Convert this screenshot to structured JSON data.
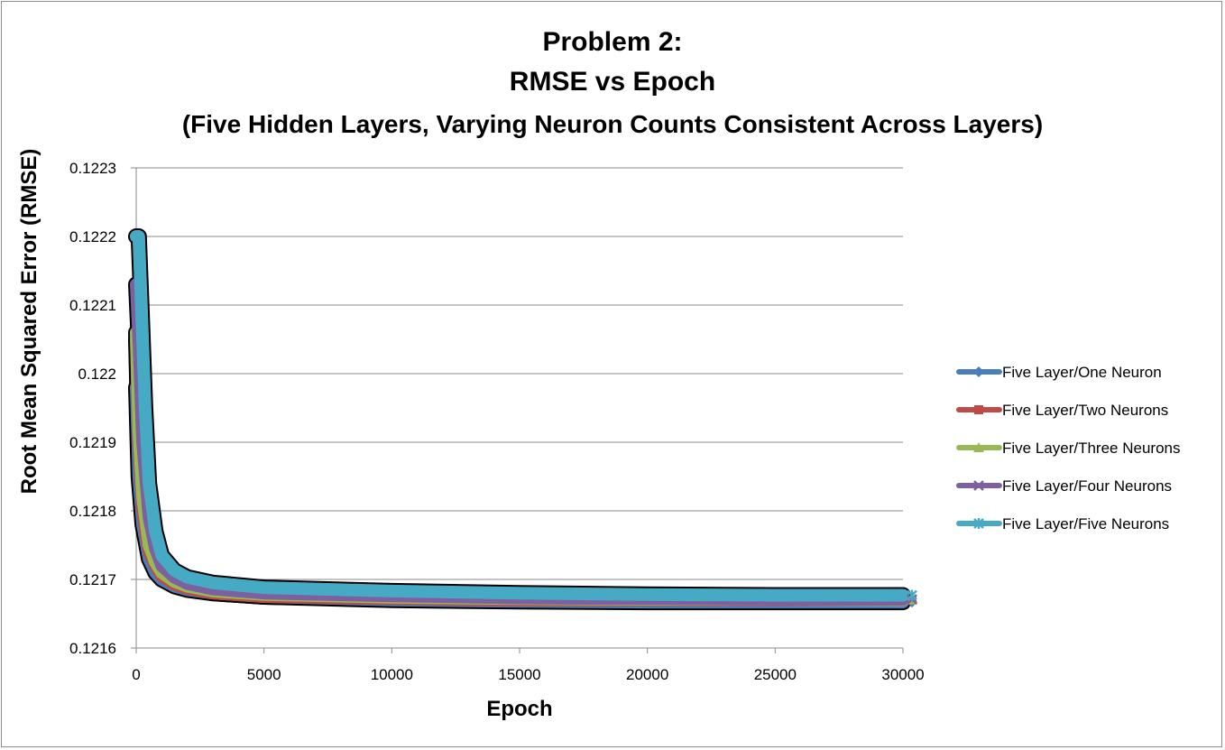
{
  "chart_data": {
    "type": "line",
    "title_lines": [
      "Problem 2:",
      "RMSE vs Epoch",
      "(Five Hidden Layers, Varying Neuron Counts Consistent Across Layers)"
    ],
    "xlabel": "Epoch",
    "ylabel": "Root Mean Squared Error (RMSE)",
    "xlim": [
      0,
      30000
    ],
    "ylim": [
      0.1216,
      0.1223
    ],
    "x_ticks": [
      "0",
      "5000",
      "10000",
      "15000",
      "20000",
      "25000",
      "30000"
    ],
    "y_ticks": [
      "0.1216",
      "0.1217",
      "0.1218",
      "0.1219",
      "0.122",
      "0.1221",
      "0.1222",
      "0.1223"
    ],
    "grid": "horizontal",
    "legend_position": "right",
    "series": [
      {
        "name": "Five Layer/One Neuron",
        "color": "#4a7ebb",
        "marker": "diamond",
        "x": [
          0,
          100,
          250,
          500,
          750,
          1000,
          1500,
          2000,
          3000,
          5000,
          10000,
          15000,
          20000,
          25000,
          30000
        ],
        "y": [
          0.12198,
          0.12185,
          0.12178,
          0.12173,
          0.12171,
          0.1217,
          0.12169,
          0.121685,
          0.12168,
          0.121675,
          0.12167,
          0.121668,
          0.121667,
          0.121667,
          0.121667
        ]
      },
      {
        "name": "Five Layer/Two Neurons",
        "color": "#be4b48",
        "marker": "square",
        "x": [
          0,
          100,
          250,
          500,
          750,
          1000,
          1500,
          2000,
          3000,
          5000,
          10000,
          15000,
          20000,
          25000,
          30000
        ],
        "y": [
          0.12205,
          0.1219,
          0.1218,
          0.12174,
          0.12172,
          0.121705,
          0.121693,
          0.121687,
          0.12168,
          0.121675,
          0.121672,
          0.12167,
          0.12167,
          0.12167,
          0.12167
        ]
      },
      {
        "name": "Five Layer/Three Neurons",
        "color": "#98b954",
        "marker": "triangle",
        "x": [
          0,
          100,
          250,
          500,
          750,
          1000,
          1500,
          2000,
          3000,
          5000,
          10000,
          15000,
          20000,
          25000,
          30000
        ],
        "y": [
          0.12206,
          0.12192,
          0.12182,
          0.12175,
          0.121725,
          0.12171,
          0.121697,
          0.12169,
          0.121683,
          0.121678,
          0.121674,
          0.121672,
          0.121671,
          0.121671,
          0.12167
        ]
      },
      {
        "name": "Five Layer/Four Neurons",
        "color": "#7d60a0",
        "marker": "x",
        "x": [
          0,
          100,
          250,
          500,
          750,
          1000,
          1500,
          2000,
          3000,
          5000,
          10000,
          15000,
          20000,
          25000,
          30000
        ],
        "y": [
          0.12213,
          0.12205,
          0.1219,
          0.12179,
          0.121745,
          0.12172,
          0.121703,
          0.121694,
          0.121686,
          0.12168,
          0.121676,
          0.121673,
          0.121672,
          0.121671,
          0.121671
        ]
      },
      {
        "name": "Five Layer/Five Neurons",
        "color": "#46aac5",
        "marker": "star",
        "x": [
          0,
          100,
          200,
          350,
          500,
          750,
          1000,
          1500,
          2000,
          3000,
          5000,
          10000,
          15000,
          20000,
          25000,
          30000
        ],
        "y": [
          0.1222,
          0.1222,
          0.1221,
          0.12195,
          0.12184,
          0.12177,
          0.121735,
          0.121713,
          0.121703,
          0.121695,
          0.121688,
          0.121683,
          0.12168,
          0.121678,
          0.121677,
          0.121677
        ]
      }
    ]
  }
}
